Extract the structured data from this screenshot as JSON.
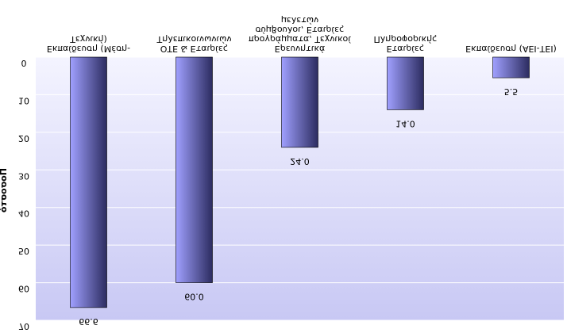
{
  "chart_data": {
    "type": "bar",
    "y_label": "Ποσοστό",
    "categories": [
      [
        "Εκπαίδευση (Μέση-",
        "Τεχνική)"
      ],
      [
        "ΟΤΕ & Εταιρίες",
        "Τηλεπικοινωνιών"
      ],
      [
        "Ερευνητικά",
        "προγράμματα, Τεχνικοί",
        "σύμβουλοι, Εταιρίες",
        "μελετών"
      ],
      [
        "Εταιρίες",
        "Πληροφορικής"
      ],
      [
        "Εκπαίδευση (ΑΕΙ-ΤΕΙ)"
      ]
    ],
    "values": [
      66.6,
      60,
      24,
      14,
      5.5
    ],
    "value_labels": [
      "66.6",
      "60.0",
      "24.0",
      "14.0",
      "5.5"
    ],
    "ylim": [
      0,
      70
    ],
    "yticks": [
      0,
      10,
      20,
      30,
      40,
      50,
      60,
      70
    ],
    "grid": true,
    "y_inverted": true,
    "color_light": "#a0a0ff",
    "color_dark": "#2c2c60"
  }
}
